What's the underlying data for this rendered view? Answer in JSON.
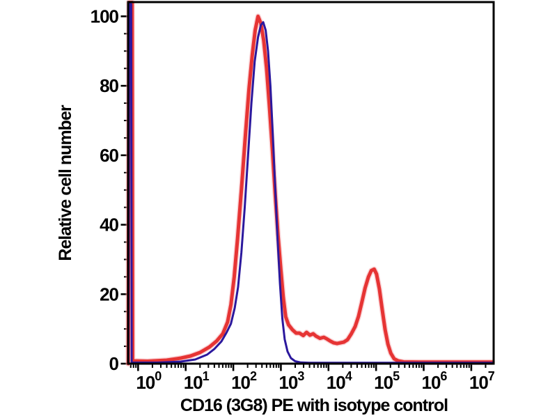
{
  "chart_data": {
    "type": "line",
    "subtype": "flow-cytometry-histogram-overlay",
    "title": "",
    "xlabel": "CD16 (3G8) PE with isotype control",
    "ylabel": "Relative cell number",
    "x_scale": "log10",
    "x_tick_exponents": [
      0,
      1,
      2,
      3,
      4,
      5,
      6,
      7
    ],
    "x_minor_tick_multiples": [
      2,
      3,
      4,
      5,
      6,
      7,
      8,
      9
    ],
    "y_ticks": [
      0,
      20,
      40,
      60,
      80,
      100
    ],
    "y_minor_step": 5,
    "x_range_log10": [
      -0.21,
      7.47
    ],
    "y_range": [
      0,
      104.1
    ],
    "grid": false,
    "legend_position": "none",
    "frame": true,
    "colors": {
      "axis": "#000000",
      "background": "#ffffff",
      "red_series": "#e63434",
      "blue_series": "#2b189d"
    },
    "series": [
      {
        "name": "CD16 (3G8) PE",
        "color": "#e63434",
        "halo_color": "#f5a8ad",
        "line_width": 5,
        "points_log10x_y": [
          [
            -0.205,
            0
          ],
          [
            -0.195,
            104
          ],
          [
            -0.125,
            104
          ],
          [
            -0.115,
            0.8
          ],
          [
            0.2,
            0.7
          ],
          [
            0.6,
            1.0
          ],
          [
            0.9,
            1.6
          ],
          [
            1.1,
            2.2
          ],
          [
            1.3,
            3.2
          ],
          [
            1.5,
            4.8
          ],
          [
            1.65,
            6.5
          ],
          [
            1.78,
            8.6
          ],
          [
            1.88,
            12
          ],
          [
            1.95,
            17
          ],
          [
            2.02,
            25
          ],
          [
            2.09,
            36
          ],
          [
            2.17,
            50
          ],
          [
            2.25,
            65
          ],
          [
            2.33,
            79
          ],
          [
            2.4,
            89
          ],
          [
            2.46,
            96
          ],
          [
            2.52,
            100
          ],
          [
            2.58,
            98
          ],
          [
            2.64,
            93
          ],
          [
            2.7,
            85
          ],
          [
            2.76,
            74
          ],
          [
            2.82,
            62
          ],
          [
            2.88,
            49
          ],
          [
            2.94,
            37
          ],
          [
            3.0,
            27
          ],
          [
            3.05,
            19
          ],
          [
            3.1,
            13.5
          ],
          [
            3.16,
            11.2
          ],
          [
            3.24,
            9.8
          ],
          [
            3.32,
            8.8
          ],
          [
            3.39,
            8.8
          ],
          [
            3.47,
            8.1
          ],
          [
            3.54,
            9.0
          ],
          [
            3.61,
            8.2
          ],
          [
            3.68,
            8.6
          ],
          [
            3.74,
            7.9
          ],
          [
            3.82,
            7.3
          ],
          [
            3.9,
            7.6
          ],
          [
            3.97,
            7.1
          ],
          [
            4.04,
            6.5
          ],
          [
            4.11,
            6.0
          ],
          [
            4.18,
            5.8
          ],
          [
            4.25,
            6.0
          ],
          [
            4.32,
            6.2
          ],
          [
            4.4,
            6.9
          ],
          [
            4.48,
            8.6
          ],
          [
            4.56,
            10.7
          ],
          [
            4.63,
            13.6
          ],
          [
            4.7,
            17.6
          ],
          [
            4.77,
            21.8
          ],
          [
            4.84,
            25.0
          ],
          [
            4.9,
            26.8
          ],
          [
            4.96,
            27.2
          ],
          [
            5.01,
            25.8
          ],
          [
            5.07,
            21.5
          ],
          [
            5.13,
            15.5
          ],
          [
            5.19,
            9.8
          ],
          [
            5.25,
            5.6
          ],
          [
            5.31,
            3.0
          ],
          [
            5.38,
            1.4
          ],
          [
            5.46,
            0.8
          ],
          [
            5.58,
            0.5
          ],
          [
            5.9,
            0.45
          ],
          [
            6.4,
            0.45
          ],
          [
            6.9,
            0.45
          ],
          [
            7.44,
            0.45
          ]
        ]
      },
      {
        "name": "Isotype control",
        "color": "#2b189d",
        "halo_color": "",
        "line_width": 3,
        "points_log10x_y": [
          [
            -0.205,
            0
          ],
          [
            -0.185,
            103.5
          ],
          [
            -0.145,
            103.5
          ],
          [
            -0.135,
            0.3
          ],
          [
            0.4,
            0.3
          ],
          [
            0.9,
            0.6
          ],
          [
            1.2,
            1.2
          ],
          [
            1.45,
            2.6
          ],
          [
            1.6,
            4.2
          ],
          [
            1.75,
            6.4
          ],
          [
            1.86,
            9
          ],
          [
            1.95,
            11.5
          ],
          [
            2.03,
            16
          ],
          [
            2.1,
            22
          ],
          [
            2.17,
            32
          ],
          [
            2.24,
            45
          ],
          [
            2.31,
            60
          ],
          [
            2.38,
            75
          ],
          [
            2.45,
            87
          ],
          [
            2.52,
            94
          ],
          [
            2.58,
            97.5
          ],
          [
            2.63,
            98.3
          ],
          [
            2.68,
            96
          ],
          [
            2.73,
            90
          ],
          [
            2.78,
            80
          ],
          [
            2.83,
            66
          ],
          [
            2.88,
            51
          ],
          [
            2.93,
            36
          ],
          [
            2.98,
            23
          ],
          [
            3.03,
            13
          ],
          [
            3.08,
            7
          ],
          [
            3.14,
            3.5
          ],
          [
            3.21,
            1.6
          ],
          [
            3.3,
            0.7
          ],
          [
            3.42,
            0.35
          ],
          [
            3.6,
            0.25
          ],
          [
            4.2,
            0.25
          ],
          [
            5.0,
            0.25
          ],
          [
            5.8,
            0.25
          ],
          [
            6.6,
            0.25
          ],
          [
            7.44,
            0.25
          ]
        ]
      }
    ]
  }
}
